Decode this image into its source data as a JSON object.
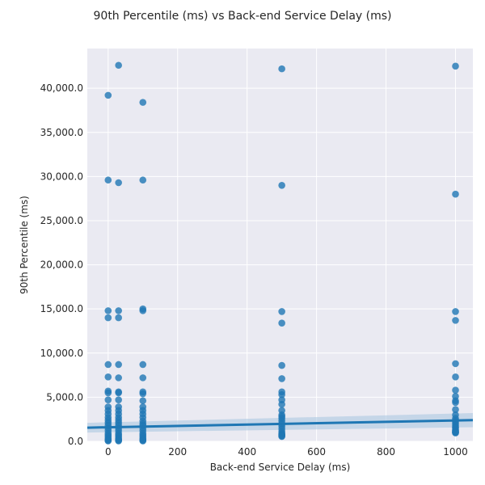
{
  "chart_data": {
    "type": "scatter",
    "title": "90th Percentile (ms) vs Back-end Service Delay (ms)",
    "xlabel": "Back-end Service Delay (ms)",
    "ylabel": "90th Percentile (ms)",
    "xlim": [
      -60,
      1050
    ],
    "ylim": [
      0,
      44500
    ],
    "xticks": [
      0,
      200,
      400,
      600,
      800,
      1000
    ],
    "xtick_labels": [
      "0",
      "200",
      "400",
      "600",
      "800",
      "1000"
    ],
    "yticks": [
      0,
      5000,
      10000,
      15000,
      20000,
      25000,
      30000,
      35000,
      40000
    ],
    "ytick_labels": [
      "0.0",
      "5,000.0",
      "10,000.0",
      "15,000.0",
      "20,000.0",
      "25,000.0",
      "30,000.0",
      "35,000.0",
      "40,000.0"
    ],
    "grid": true,
    "style": "darkgrid",
    "colors": {
      "points": "#1f77b4",
      "regression": "#1f77b4",
      "band": "#a6c4e0",
      "background": "#eaeaf2",
      "grid": "#ffffff"
    },
    "series": [
      {
        "x": [
          0,
          0,
          0,
          0,
          0,
          0,
          0,
          0,
          0,
          0,
          0,
          0,
          0,
          0,
          0,
          0,
          0,
          0,
          0,
          0,
          0,
          0,
          0,
          0,
          0,
          30,
          30,
          30,
          30,
          30,
          30,
          30,
          30,
          30,
          30,
          30,
          30,
          30,
          30,
          30,
          30,
          30,
          30,
          30,
          30,
          30,
          30,
          30,
          30,
          30,
          100,
          100,
          100,
          100,
          100,
          100,
          100,
          100,
          100,
          100,
          100,
          100,
          100,
          100,
          100,
          100,
          100,
          100,
          100,
          100,
          100,
          100,
          100,
          100,
          100,
          500,
          500,
          500,
          500,
          500,
          500,
          500,
          500,
          500,
          500,
          500,
          500,
          500,
          500,
          500,
          500,
          500,
          500,
          500,
          500,
          500,
          500,
          500,
          500,
          1000,
          1000,
          1000,
          1000,
          1000,
          1000,
          1000,
          1000,
          1000,
          1000,
          1000,
          1000,
          1000,
          1000,
          1000,
          1000,
          1000,
          1000,
          1000,
          1000,
          1000,
          1000,
          1000,
          1000,
          1000
        ],
        "y": [
          39200,
          29600,
          14800,
          14000,
          8700,
          7300,
          5700,
          5500,
          4700,
          3900,
          3500,
          3100,
          2700,
          2400,
          2100,
          1800,
          1500,
          1200,
          900,
          700,
          500,
          300,
          200,
          100,
          50,
          42600,
          29300,
          14800,
          14000,
          8700,
          7200,
          5600,
          5500,
          4700,
          3900,
          3500,
          3100,
          2700,
          2400,
          2100,
          1800,
          1500,
          1200,
          900,
          700,
          500,
          300,
          200,
          100,
          50,
          38400,
          29600,
          15000,
          14800,
          8700,
          7200,
          5600,
          5400,
          4600,
          3900,
          3500,
          3100,
          2700,
          2300,
          2000,
          1800,
          1500,
          1200,
          900,
          700,
          500,
          300,
          200,
          100,
          50,
          42200,
          29000,
          14700,
          13400,
          8600,
          7100,
          5600,
          5300,
          4700,
          4200,
          3500,
          3000,
          2800,
          2600,
          2300,
          2000,
          1700,
          1400,
          1100,
          900,
          800,
          700,
          600,
          550,
          42500,
          28000,
          14700,
          13700,
          8800,
          7300,
          5800,
          5100,
          4600,
          4400,
          3600,
          3000,
          2600,
          2400,
          2200,
          2000,
          1800,
          1600,
          1500,
          1300,
          1200,
          1100,
          1050,
          1000,
          950
        ]
      }
    ],
    "regression": {
      "x": [
        -60,
        1050
      ],
      "y": [
        1550,
        2400
      ],
      "ci_lower": [
        1000,
        1600
      ],
      "ci_upper": [
        2100,
        3200
      ]
    }
  }
}
